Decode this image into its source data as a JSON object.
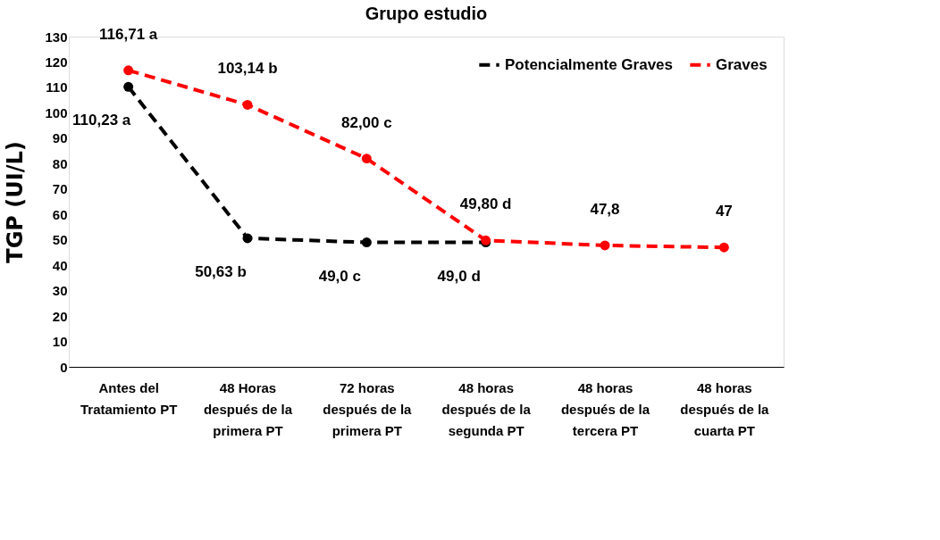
{
  "chart_data": {
    "type": "line",
    "title": "Grupo estudio",
    "ylabel": "TGP (UI/L)",
    "categories": [
      "Antes del\nTratamiento PT",
      "48 Horas\ndespués de la\nprimera PT",
      "72 horas\ndespués de la\nprimera PT",
      "48 horas\ndespués de la\nsegunda PT",
      "48 horas\ndespués de la\ntercera PT",
      "48 horas\ndespués de la\ncuarta PT"
    ],
    "series": [
      {
        "name": "Potencialmente Graves",
        "color": "#000000",
        "values": [
          110.23,
          50.63,
          49.0,
          49.0,
          null,
          null
        ],
        "value_labels": [
          "110,23 a",
          "50,63 b",
          "49,0 c",
          "49,0 d",
          null,
          null
        ]
      },
      {
        "name": "Graves",
        "color": "#ff0000",
        "values": [
          116.71,
          103.14,
          82.0,
          49.8,
          47.8,
          47
        ],
        "value_labels": [
          "116,71 a",
          "103,14 b",
          "82,00 c",
          "49,80 d",
          "47,8",
          "47"
        ]
      }
    ],
    "ylim": [
      0,
      130
    ],
    "yticks": [
      0,
      10,
      20,
      30,
      40,
      50,
      60,
      70,
      80,
      90,
      100,
      110,
      120,
      130
    ],
    "grid": false,
    "legend": "top right",
    "marker": "circle",
    "line_style": "dashed"
  }
}
